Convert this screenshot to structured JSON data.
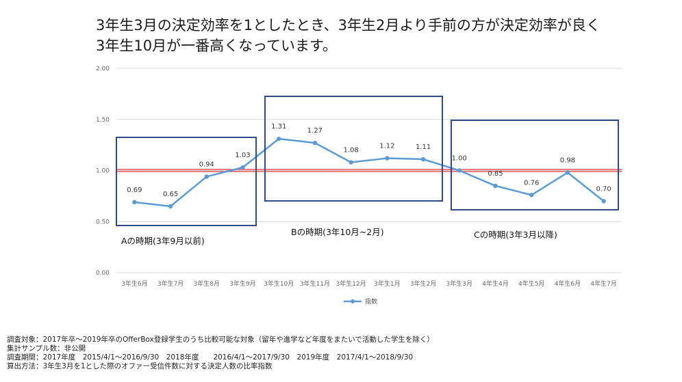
{
  "headline": {
    "line1": "3年生3月の決定効率を1としたとき、3年生2月より手前の方が決定効率が良く",
    "line2": "3年生10月が一番高くなっています。"
  },
  "chart_data": {
    "type": "line",
    "categories": [
      "3年生6月",
      "3年生7月",
      "3年生8月",
      "3年生9月",
      "3年生10月",
      "3年生11月",
      "3年生12月",
      "3年生1月",
      "3年生2月",
      "3年生3月",
      "4年生4月",
      "4年生5月",
      "4年生6月",
      "4年生7月"
    ],
    "series": [
      {
        "name": "指数",
        "values": [
          0.69,
          0.65,
          0.94,
          1.03,
          1.31,
          1.27,
          1.08,
          1.12,
          1.11,
          1.0,
          0.85,
          0.76,
          0.98,
          0.7
        ],
        "color": "#5b9bd5"
      }
    ],
    "data_labels": [
      "0.69",
      "0.65",
      "0.94",
      "1.03",
      "1.31",
      "1.27",
      "1.08",
      "1.12",
      "1.11",
      "1.00",
      "0.85",
      "0.76",
      "0.98",
      "0.70"
    ],
    "ylim": [
      0,
      2
    ],
    "yticks": [
      "0.00",
      "0.50",
      "1.00",
      "1.50",
      "2.00"
    ],
    "ytick_values": [
      0,
      0.5,
      1.0,
      1.5,
      2.0
    ],
    "grid": true,
    "legend_position": "bottom",
    "reference_line": {
      "value": 1.0,
      "color": "#e03030"
    },
    "periods": [
      {
        "label": "Aの時期(3年9月以前)",
        "color": "#2f4a8a"
      },
      {
        "label": "Bの時期(3年10月~2月)",
        "color": "#2f4a8a"
      },
      {
        "label": "Cの時期(3年3月以降)",
        "color": "#2f4a8a"
      }
    ]
  },
  "notes": {
    "line1": "調査対象：2017年卒～2019年卒のOfferBox登録学生のうち比較可能な対象（留年や進学など年度をまたいで活動した学生を除く）",
    "line2": "集計サンプル数：非公開",
    "line3": "調査期間：2017年度　2015/4/1～2016/9/30　2018年度　　2016/4/1～2017/9/30　2019年度　2017/4/1～2018/9/30",
    "line4": "算出方法：3年生3月を1とした際のオファー受信件数に対する決定人数の比率指数"
  }
}
